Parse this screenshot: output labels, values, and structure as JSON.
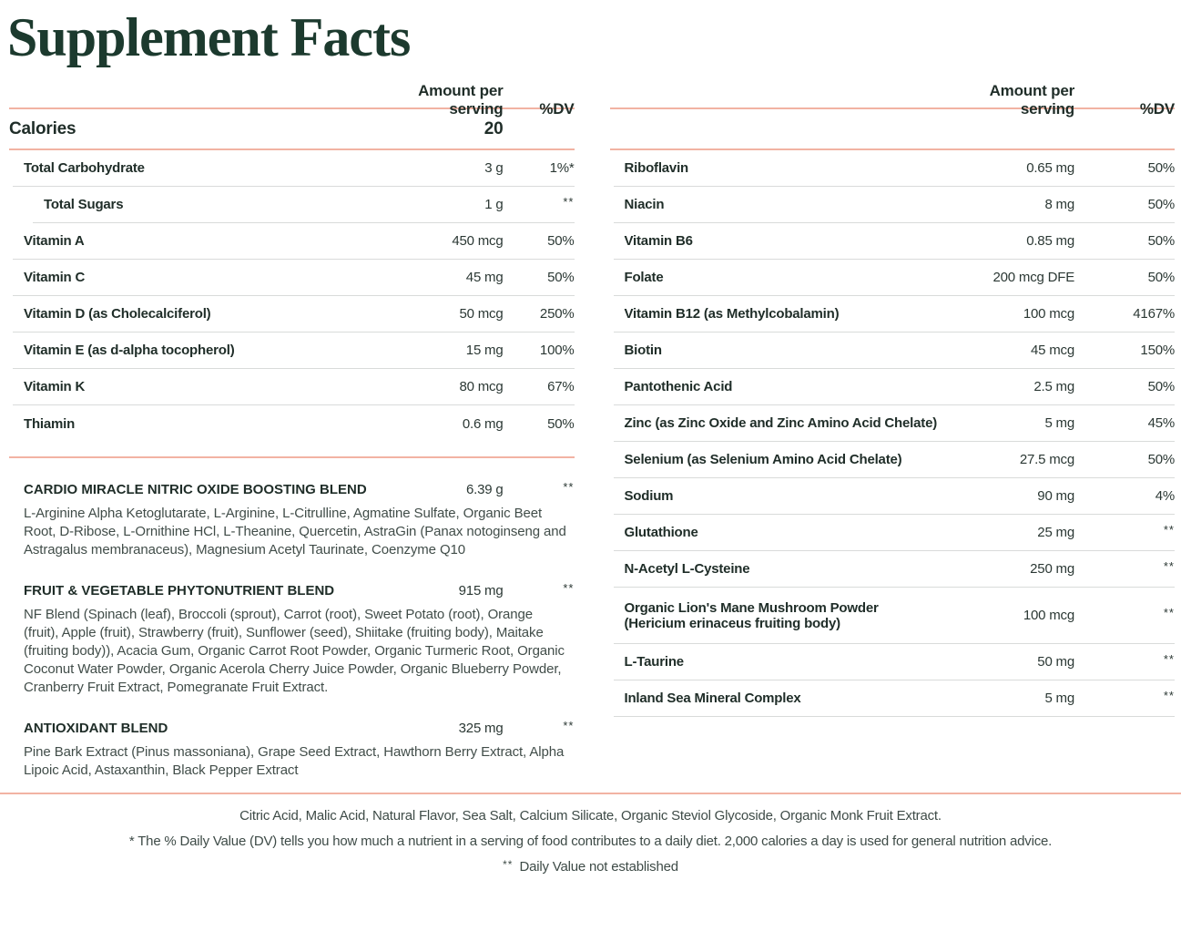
{
  "title": "Supplement Facts",
  "columns": {
    "left": {
      "header": {
        "amount": "Amount per serving",
        "dv": "%DV"
      },
      "calories": {
        "label": "Calories",
        "value": "20"
      },
      "rows": [
        {
          "label": "Total Carbohydrate",
          "amount": "3 g",
          "dv": "1%*"
        },
        {
          "label": "Total Sugars",
          "amount": "1 g",
          "dv": "**"
        },
        {
          "label": "Vitamin A",
          "amount": "450 mcg",
          "dv": "50%"
        },
        {
          "label": "Vitamin C",
          "amount": "45 mg",
          "dv": "50%"
        },
        {
          "label": "Vitamin D (as Cholecalciferol)",
          "amount": "50 mcg",
          "dv": "250%"
        },
        {
          "label": "Vitamin E (as d-alpha tocopherol)",
          "amount": "15 mg",
          "dv": "100%"
        },
        {
          "label": "Vitamin K",
          "amount": "80 mcg",
          "dv": "67%"
        },
        {
          "label": "Thiamin",
          "amount": "0.6 mg",
          "dv": "50%"
        }
      ],
      "blends": [
        {
          "name": "CARDIO MIRACLE NITRIC OXIDE BOOSTING BLEND",
          "amount": "6.39 g",
          "dv": "**",
          "ingredients": "L-Arginine Alpha Ketoglutarate, L-Arginine, L-Citrulline, Agmatine Sulfate, Organic Beet Root, D-Ribose, L-Ornithine HCl, L-Theanine, Quercetin, AstraGin (Panax notoginseng and Astragalus membranaceus), Magnesium Acetyl Taurinate, Coenzyme Q10"
        },
        {
          "name": "FRUIT & VEGETABLE PHYTONUTRIENT BLEND",
          "amount": "915 mg",
          "dv": "**",
          "ingredients": "NF Blend (Spinach (leaf), Broccoli (sprout), Carrot (root), Sweet Potato (root), Orange (fruit), Apple (fruit), Strawberry (fruit), Sunflower (seed), Shiitake (fruiting body), Maitake (fruiting body)), Acacia Gum, Organic Carrot Root Powder, Organic Turmeric Root, Organic Coconut Water Powder, Organic Acerola Cherry Juice Powder, Organic Blueberry Powder, Cranberry Fruit Extract, Pomegranate Fruit Extract."
        },
        {
          "name": "ANTIOXIDANT BLEND",
          "amount": "325 mg",
          "dv": "**",
          "ingredients": "Pine Bark Extract (Pinus massoniana), Grape Seed Extract, Hawthorn Berry Extract, Alpha Lipoic Acid, Astaxanthin, Black Pepper Extract"
        }
      ]
    },
    "right": {
      "header": {
        "amount": "Amount per serving",
        "dv": "%DV"
      },
      "rows": [
        {
          "label": "Riboflavin",
          "amount": "0.65 mg",
          "dv": "50%"
        },
        {
          "label": "Niacin",
          "amount": "8 mg",
          "dv": "50%"
        },
        {
          "label": "Vitamin B6",
          "amount": "0.85 mg",
          "dv": "50%"
        },
        {
          "label": "Folate",
          "amount": "200 mcg DFE",
          "dv": "50%"
        },
        {
          "label": "Vitamin B12 (as Methylcobalamin)",
          "amount": "100 mcg",
          "dv": "4167%"
        },
        {
          "label": "Biotin",
          "amount": "45 mcg",
          "dv": "150%"
        },
        {
          "label": "Pantothenic Acid",
          "amount": "2.5 mg",
          "dv": "50%"
        },
        {
          "label": "Zinc (as Zinc Oxide and Zinc Amino Acid Chelate)",
          "amount": "5 mg",
          "dv": "45%"
        },
        {
          "label": "Selenium (as Selenium Amino Acid Chelate)",
          "amount": "27.5 mcg",
          "dv": "50%"
        },
        {
          "label": "Sodium",
          "amount": "90 mg",
          "dv": "4%"
        },
        {
          "label": "Glutathione",
          "amount": "25 mg",
          "dv": "**"
        },
        {
          "label": "N-Acetyl L-Cysteine",
          "amount": "250 mg",
          "dv": "**"
        },
        {
          "label": "Organic Lion's Mane Mushroom Powder",
          "sublabel": "(Hericium erinaceus fruiting body)",
          "amount": "100 mcg",
          "dv": "**"
        },
        {
          "label": "L-Taurine",
          "amount": "50 mg",
          "dv": "**"
        },
        {
          "label": "Inland Sea Mineral Complex",
          "amount": "5 mg",
          "dv": "**"
        }
      ]
    }
  },
  "footer": {
    "other_ingredients": "Citric Acid, Malic Acid, Natural Flavor, Sea Salt, Calcium Silicate, Organic Steviol Glycoside, Organic Monk Fruit Extract.",
    "dv_note": "* The % Daily Value (DV) tells you how much a nutrient in a serving of food contributes to a daily diet. 2,000 calories a day is used for general nutrition advice.",
    "not_established_symbol": "**",
    "not_established_note": "Daily Value not established"
  },
  "colors": {
    "accent_line": "#f2b3a3",
    "row_divider": "#d9dbda",
    "title_text": "#1c3a2e",
    "body_text": "#1f2d28",
    "muted_text": "#414d49"
  }
}
